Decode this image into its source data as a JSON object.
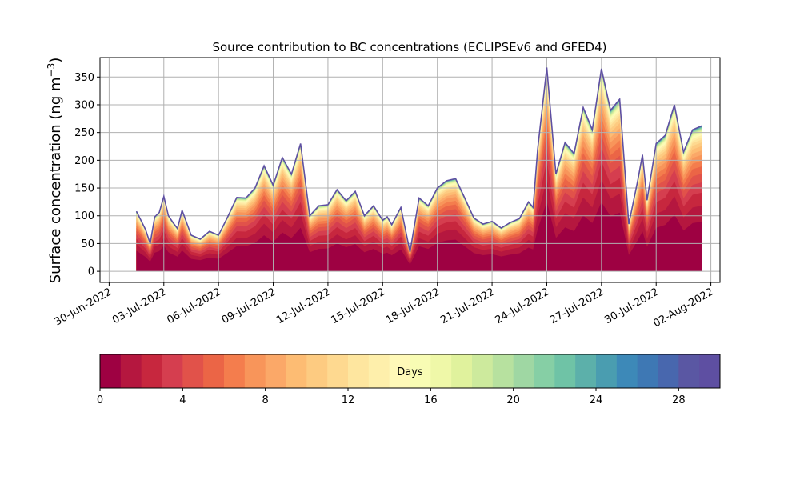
{
  "chart_data": {
    "type": "area",
    "title": "Source contribution to BC concentrations (ECLIPSEv6 and GFED4)",
    "ylabel_main": "Surface concentration (ng m",
    "ylabel_sup": "−3",
    "ylabel_close": ")",
    "xlim": [
      "2022-06-29T12:00",
      "2022-08-02T12:00"
    ],
    "ylim": [
      -20,
      385
    ],
    "grid": true,
    "x_ticks": [
      {
        "date": "2022-06-30",
        "label": "30-Jun-2022"
      },
      {
        "date": "2022-07-03",
        "label": "03-Jul-2022"
      },
      {
        "date": "2022-07-06",
        "label": "06-Jul-2022"
      },
      {
        "date": "2022-07-09",
        "label": "09-Jul-2022"
      },
      {
        "date": "2022-07-12",
        "label": "12-Jul-2022"
      },
      {
        "date": "2022-07-15",
        "label": "15-Jul-2022"
      },
      {
        "date": "2022-07-18",
        "label": "18-Jul-2022"
      },
      {
        "date": "2022-07-21",
        "label": "21-Jul-2022"
      },
      {
        "date": "2022-07-24",
        "label": "24-Jul-2022"
      },
      {
        "date": "2022-07-27",
        "label": "27-Jul-2022"
      },
      {
        "date": "2022-07-30",
        "label": "30-Jul-2022"
      },
      {
        "date": "2022-08-02",
        "label": "02-Aug-2022"
      }
    ],
    "y_ticks": [
      0,
      50,
      100,
      150,
      200,
      250,
      300,
      350
    ],
    "total_series": {
      "x": [
        "2022-07-01T12:00",
        "2022-07-02T00:00",
        "2022-07-02T06:00",
        "2022-07-02T12:00",
        "2022-07-02T18:00",
        "2022-07-03T00:00",
        "2022-07-03T06:00",
        "2022-07-03T12:00",
        "2022-07-03T18:00",
        "2022-07-04T00:00",
        "2022-07-04T12:00",
        "2022-07-05T00:00",
        "2022-07-05T12:00",
        "2022-07-06T00:00",
        "2022-07-06T12:00",
        "2022-07-07T00:00",
        "2022-07-07T12:00",
        "2022-07-08T00:00",
        "2022-07-08T12:00",
        "2022-07-09T00:00",
        "2022-07-09T12:00",
        "2022-07-10T00:00",
        "2022-07-10T12:00",
        "2022-07-11T00:00",
        "2022-07-11T12:00",
        "2022-07-12T00:00",
        "2022-07-12T12:00",
        "2022-07-13T00:00",
        "2022-07-13T12:00",
        "2022-07-14T00:00",
        "2022-07-14T12:00",
        "2022-07-15T00:00",
        "2022-07-15T06:00",
        "2022-07-15T12:00",
        "2022-07-16T00:00",
        "2022-07-16T12:00",
        "2022-07-17T00:00",
        "2022-07-17T12:00",
        "2022-07-18T00:00",
        "2022-07-18T12:00",
        "2022-07-19T00:00",
        "2022-07-19T12:00",
        "2022-07-20T00:00",
        "2022-07-20T12:00",
        "2022-07-21T00:00",
        "2022-07-21T12:00",
        "2022-07-22T00:00",
        "2022-07-22T12:00",
        "2022-07-23T00:00",
        "2022-07-23T06:00",
        "2022-07-23T12:00",
        "2022-07-24T00:00",
        "2022-07-24T12:00",
        "2022-07-25T00:00",
        "2022-07-25T12:00",
        "2022-07-26T00:00",
        "2022-07-26T12:00",
        "2022-07-27T00:00",
        "2022-07-27T12:00",
        "2022-07-28T00:00",
        "2022-07-28T12:00",
        "2022-07-29T00:00",
        "2022-07-29T06:00",
        "2022-07-29T12:00",
        "2022-07-30T00:00",
        "2022-07-30T12:00",
        "2022-07-31T00:00",
        "2022-07-31T12:00",
        "2022-08-01T00:00",
        "2022-08-01T12:00"
      ],
      "y": [
        108,
        75,
        50,
        98,
        106,
        135,
        100,
        88,
        77,
        110,
        65,
        58,
        72,
        65,
        98,
        133,
        132,
        150,
        190,
        155,
        205,
        175,
        230,
        100,
        118,
        120,
        147,
        127,
        144,
        100,
        118,
        92,
        98,
        84,
        115,
        35,
        132,
        118,
        150,
        163,
        167,
        132,
        96,
        85,
        90,
        78,
        88,
        95,
        125,
        115,
        220,
        367,
        175,
        232,
        212,
        295,
        255,
        365,
        290,
        310,
        85,
        165,
        210,
        128,
        230,
        245,
        300,
        215,
        255,
        262
      ]
    },
    "band_fractions": [
      0.34,
      0.45,
      0.54,
      0.61,
      0.67,
      0.72,
      0.76,
      0.8,
      0.83,
      0.86,
      0.885,
      0.905,
      0.92,
      0.935,
      0.945,
      0.955,
      0.962,
      0.968,
      0.974,
      0.979,
      0.983,
      0.986,
      0.989,
      0.992,
      0.994,
      0.996,
      0.998,
      0.999,
      1.0
    ],
    "colorbar": {
      "label": "Days",
      "min": 0,
      "max": 30,
      "ticks": [
        0,
        4,
        8,
        12,
        16,
        20,
        24,
        28
      ],
      "colors": [
        "#9e0142",
        "#b5173f",
        "#c7273e",
        "#d53e4f",
        "#e1524a",
        "#eb6546",
        "#f47d4d",
        "#f8955a",
        "#fba868",
        "#fdbc73",
        "#fdcb81",
        "#fed990",
        "#fee69f",
        "#feefab",
        "#fff9b8",
        "#f8fcb4",
        "#eff8a8",
        "#e0f29d",
        "#cdea9d",
        "#b7e19f",
        "#9fd7a3",
        "#86cfa5",
        "#6fc3a6",
        "#5cb0aa",
        "#4a9db0",
        "#3d89b8",
        "#3e78b4",
        "#4867ae",
        "#5a57a3",
        "#5e4fa2"
      ]
    }
  }
}
